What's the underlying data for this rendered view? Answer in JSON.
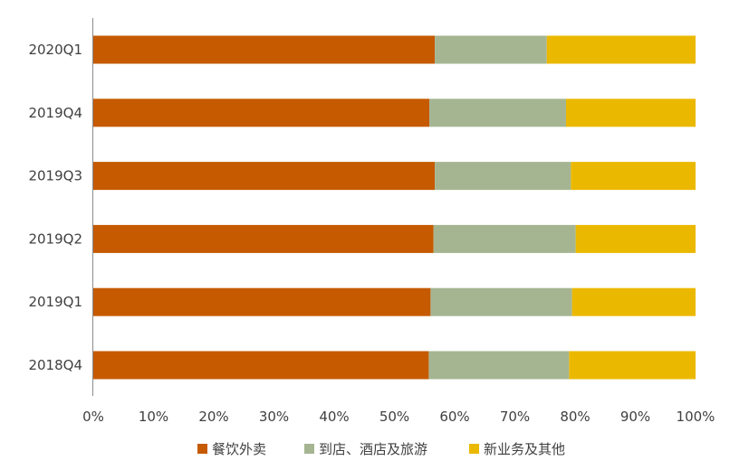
{
  "chart_data": {
    "type": "bar",
    "orientation": "horizontal",
    "stacked": true,
    "categories": [
      "2020Q1",
      "2019Q4",
      "2019Q3",
      "2019Q2",
      "2019Q1",
      "2018Q4"
    ],
    "series": [
      {
        "name": "餐饮外卖",
        "color": "#C55A00",
        "values": [
          56.7,
          55.8,
          56.7,
          56.5,
          56.0,
          55.7
        ]
      },
      {
        "name": "到店、酒店及旅游",
        "color": "#A5B592",
        "values": [
          18.6,
          22.7,
          22.6,
          23.6,
          23.5,
          23.3
        ]
      },
      {
        "name": "新业务及其他",
        "color": "#EBB800",
        "values": [
          24.7,
          21.5,
          20.7,
          19.9,
          20.5,
          21.0
        ]
      }
    ],
    "xlim": [
      0,
      100
    ],
    "x_ticks": [
      "0%",
      "10%",
      "20%",
      "30%",
      "40%",
      "50%",
      "60%",
      "70%",
      "80%",
      "90%",
      "100%"
    ],
    "title": "",
    "xlabel": "",
    "ylabel": "",
    "grid": false,
    "legend_position": "bottom"
  }
}
